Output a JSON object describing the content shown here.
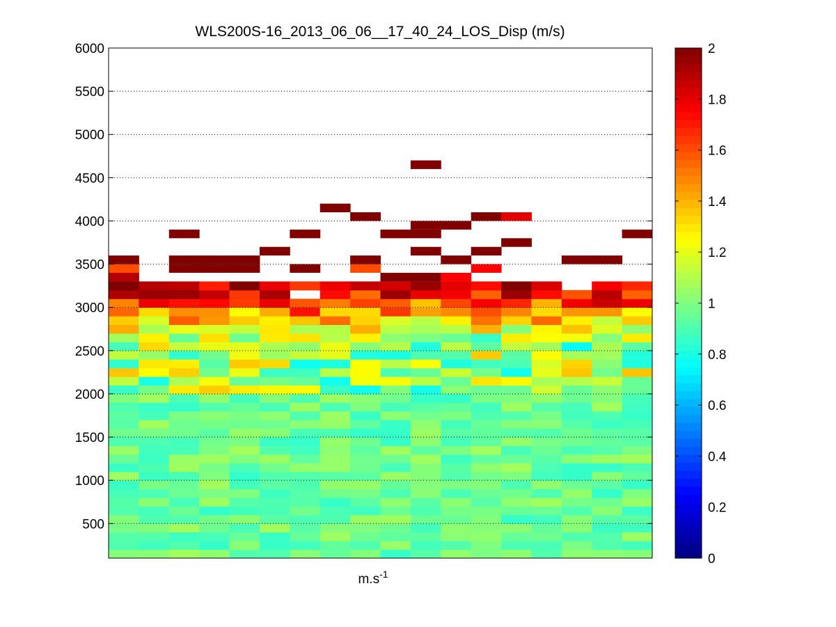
{
  "chart_data": {
    "type": "heatmap",
    "title": "WLS200S-16_2013_06_06__17_40_24_LOS_Disp (m/s)",
    "xlabel": "m.s",
    "xlabel_superscript": "-1",
    "ylabel": "",
    "ylim": [
      100,
      6000
    ],
    "yticks": [
      500,
      1000,
      1500,
      2000,
      2500,
      3000,
      3500,
      4000,
      4500,
      5000,
      5500,
      6000
    ],
    "grid": "horizontal dotted at y ticks",
    "columns": 18,
    "row_height": 100,
    "colormap": "jet",
    "clim": [
      0,
      2
    ],
    "colorbar_ticks": [
      0,
      0.2,
      0.4,
      0.6,
      0.8,
      1,
      1.2,
      1.4,
      1.6,
      1.8,
      2
    ],
    "colorbar_tick_labels": [
      "0",
      "0.2",
      "0.4",
      "0.6",
      "0.8",
      "1",
      "1.2",
      "1.4",
      "1.6",
      "1.8",
      "2"
    ],
    "colorbar_position": "right",
    "high_cells": [
      {
        "col": 10,
        "altitude": 4650,
        "value": 2.0
      },
      {
        "col": 7,
        "altitude": 4150,
        "value": 2.0
      },
      {
        "col": 8,
        "altitude": 4050,
        "value": 2.0
      },
      {
        "col": 12,
        "altitude": 4050,
        "value": 2.0
      },
      {
        "col": 13,
        "altitude": 4050,
        "value": 1.8
      },
      {
        "col": 10,
        "altitude": 3950,
        "value": 2.0
      },
      {
        "col": 11,
        "altitude": 3950,
        "value": 2.0
      },
      {
        "col": 2,
        "altitude": 3850,
        "value": 2.0
      },
      {
        "col": 6,
        "altitude": 3850,
        "value": 2.0
      },
      {
        "col": 9,
        "altitude": 3850,
        "value": 2.0
      },
      {
        "col": 10,
        "altitude": 3850,
        "value": 2.0
      },
      {
        "col": 17,
        "altitude": 3850,
        "value": 2.0
      },
      {
        "col": 13,
        "altitude": 3750,
        "value": 2.0
      },
      {
        "col": 5,
        "altitude": 3650,
        "value": 2.0
      },
      {
        "col": 10,
        "altitude": 3650,
        "value": 2.0
      },
      {
        "col": 12,
        "altitude": 3650,
        "value": 2.0
      },
      {
        "col": 0,
        "altitude": 3550,
        "value": 2.0
      },
      {
        "col": 2,
        "altitude": 3550,
        "value": 2.0
      },
      {
        "col": 3,
        "altitude": 3550,
        "value": 2.0
      },
      {
        "col": 4,
        "altitude": 3550,
        "value": 2.0
      },
      {
        "col": 8,
        "altitude": 3550,
        "value": 2.0
      },
      {
        "col": 11,
        "altitude": 3550,
        "value": 2.0
      },
      {
        "col": 15,
        "altitude": 3550,
        "value": 2.0
      },
      {
        "col": 16,
        "altitude": 3550,
        "value": 2.0
      },
      {
        "col": 0,
        "altitude": 3450,
        "value": 1.6
      },
      {
        "col": 2,
        "altitude": 3450,
        "value": 2.0
      },
      {
        "col": 3,
        "altitude": 3450,
        "value": 2.0
      },
      {
        "col": 4,
        "altitude": 3450,
        "value": 2.0
      },
      {
        "col": 6,
        "altitude": 3450,
        "value": 2.0
      },
      {
        "col": 8,
        "altitude": 3450,
        "value": 1.6
      },
      {
        "col": 12,
        "altitude": 3450,
        "value": 1.75
      },
      {
        "col": 0,
        "altitude": 3350,
        "value": 1.9
      },
      {
        "col": 9,
        "altitude": 3350,
        "value": 2.0
      },
      {
        "col": 10,
        "altitude": 3350,
        "value": 2.0
      },
      {
        "col": 11,
        "altitude": 3350,
        "value": 1.75
      }
    ]
  }
}
